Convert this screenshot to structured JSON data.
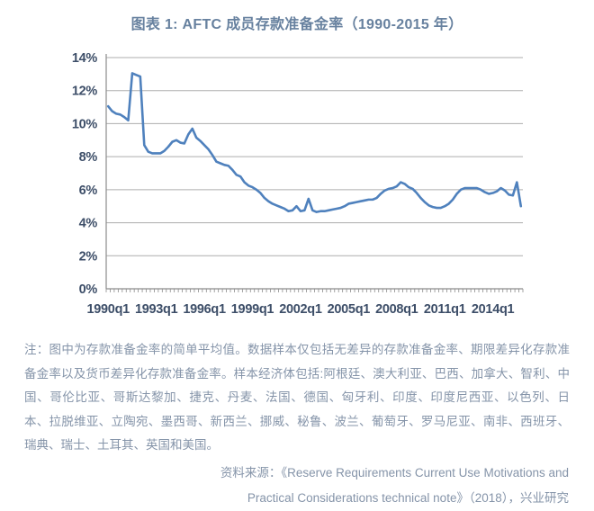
{
  "title": "图表 1: AFTC 成员存款准备金率（1990-2015 年）",
  "chart_data": {
    "type": "line",
    "title": "图表 1: AFTC 成员存款准备金率（1990-2015 年）",
    "xlabel": "",
    "ylabel": "",
    "x_unit": "quarter",
    "x_start": "1990q1",
    "x_end": "2015q4",
    "x_tick_labels": [
      "1990q1",
      "1993q1",
      "1996q1",
      "1999q1",
      "2002q1",
      "2005q1",
      "2008q1",
      "2011q1",
      "2014q1"
    ],
    "x_tick_interval_quarters": 12,
    "y_tick_labels": [
      "0%",
      "2%",
      "4%",
      "6%",
      "8%",
      "10%",
      "12%",
      "14%"
    ],
    "ylim": [
      0,
      14
    ],
    "grid": "horizontal",
    "legend_position": "none",
    "line_color": "#4F81BD",
    "gridline_color": "#adadad",
    "axis_color": "#8c8c8c",
    "series": [
      {
        "name": "AFTC 成员存款准备金率（简单平均值，%）",
        "values": [
          11.05,
          10.75,
          10.6,
          10.55,
          10.4,
          10.2,
          13.05,
          12.95,
          12.85,
          8.7,
          8.3,
          8.2,
          8.2,
          8.2,
          8.35,
          8.6,
          8.9,
          9.0,
          8.85,
          8.8,
          9.35,
          9.7,
          9.15,
          8.95,
          8.7,
          8.45,
          8.1,
          7.7,
          7.6,
          7.5,
          7.45,
          7.2,
          6.9,
          6.8,
          6.45,
          6.25,
          6.15,
          6.0,
          5.8,
          5.5,
          5.3,
          5.15,
          5.05,
          4.95,
          4.85,
          4.7,
          4.75,
          5.0,
          4.7,
          4.75,
          5.45,
          4.75,
          4.65,
          4.7,
          4.7,
          4.75,
          4.8,
          4.85,
          4.9,
          5.0,
          5.15,
          5.2,
          5.25,
          5.3,
          5.35,
          5.4,
          5.4,
          5.5,
          5.75,
          5.95,
          6.05,
          6.1,
          6.2,
          6.45,
          6.35,
          6.15,
          6.05,
          5.8,
          5.5,
          5.25,
          5.05,
          4.95,
          4.9,
          4.9,
          5.0,
          5.15,
          5.4,
          5.75,
          6.0,
          6.1,
          6.1,
          6.1,
          6.1,
          6.0,
          5.85,
          5.75,
          5.8,
          5.9,
          6.1,
          5.95,
          5.7,
          5.65,
          6.45,
          5.0
        ]
      }
    ]
  },
  "note": {
    "text": "注：图中为存款准备金率的简单平均值。数据样本仅包括无差异的存款准备金率、期限差异化存款准备金率以及货币差异化存款准备金率。样本经济体包括:阿根廷、澳大利亚、巴西、加拿大、智利、中国、哥伦比亚、哥斯达黎加、捷克、丹麦、法国、德国、匈牙利、印度、印度尼西亚、以色列、日本、拉脱维亚、立陶宛、墨西哥、新西兰、挪威、秘鲁、波兰、葡萄牙、罗马尼亚、南非、西班牙、瑞典、瑞士、土耳其、英国和美国。"
  },
  "source": {
    "line1": "资料来源：《Reserve Requirements Current Use Motivations and",
    "line2": "Practical Considerations technical note》（2018），兴业研究"
  },
  "colors": {
    "title": "#67819f",
    "axis_text": "#3d4e68",
    "note_text": "#8594a9",
    "line": "#4F81BD",
    "gridline": "#adadad",
    "axis_line": "#8c8c8c",
    "background": "#ffffff"
  }
}
